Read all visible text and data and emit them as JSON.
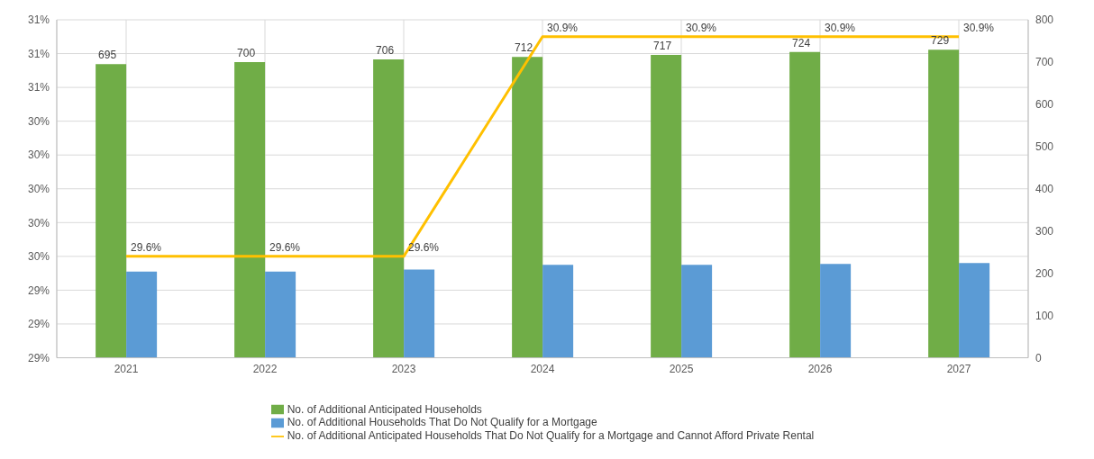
{
  "chart_data": {
    "type": "bar",
    "categories": [
      "2021",
      "2022",
      "2023",
      "2024",
      "2025",
      "2026",
      "2027"
    ],
    "series": [
      {
        "name": "No. of Additional Anticipated Households",
        "axis": "y2",
        "color": "#70ad47",
        "values": [
          695,
          700,
          706,
          712,
          717,
          724,
          729
        ],
        "value_labels": [
          "695",
          "700",
          "706",
          "712",
          "717",
          "724",
          "729"
        ]
      },
      {
        "name": "No. of Additional Households That Do Not Qualify for a Mortgage",
        "axis": "y2",
        "color": "#5b9bd5",
        "values": [
          204,
          204,
          209,
          220,
          220,
          222,
          224
        ]
      },
      {
        "name": "No. of Additional Anticipated Households That Do Not Qualify for a Mortgage  and Cannot Afford Private Rental",
        "type": "line",
        "axis": "y",
        "color": "#ffc000",
        "values": [
          29.6,
          29.6,
          29.6,
          30.9,
          30.9,
          30.9,
          30.9
        ],
        "value_labels": [
          "29.6%",
          "29.6%",
          "29.6%",
          "30.9%",
          "30.9%",
          "30.9%",
          "30.9%"
        ]
      }
    ],
    "ylim": [
      29.0,
      31.0
    ],
    "yticks": [
      {
        "value": 29.0,
        "label": "29%"
      },
      {
        "value": 29.2,
        "label": "29%"
      },
      {
        "value": 29.4,
        "label": "29%"
      },
      {
        "value": 29.6,
        "label": "30%"
      },
      {
        "value": 29.8,
        "label": "30%"
      },
      {
        "value": 30.0,
        "label": "30%"
      },
      {
        "value": 30.2,
        "label": "30%"
      },
      {
        "value": 30.4,
        "label": "30%"
      },
      {
        "value": 30.6,
        "label": "31%"
      },
      {
        "value": 30.8,
        "label": "31%"
      },
      {
        "value": 31.0,
        "label": "31%"
      }
    ],
    "y2lim": [
      0,
      800
    ],
    "y2ticks": [
      0,
      100,
      200,
      300,
      400,
      500,
      600,
      700,
      800
    ],
    "grid": true,
    "legend": "bottom",
    "marker": "none",
    "line_style": "solid"
  }
}
